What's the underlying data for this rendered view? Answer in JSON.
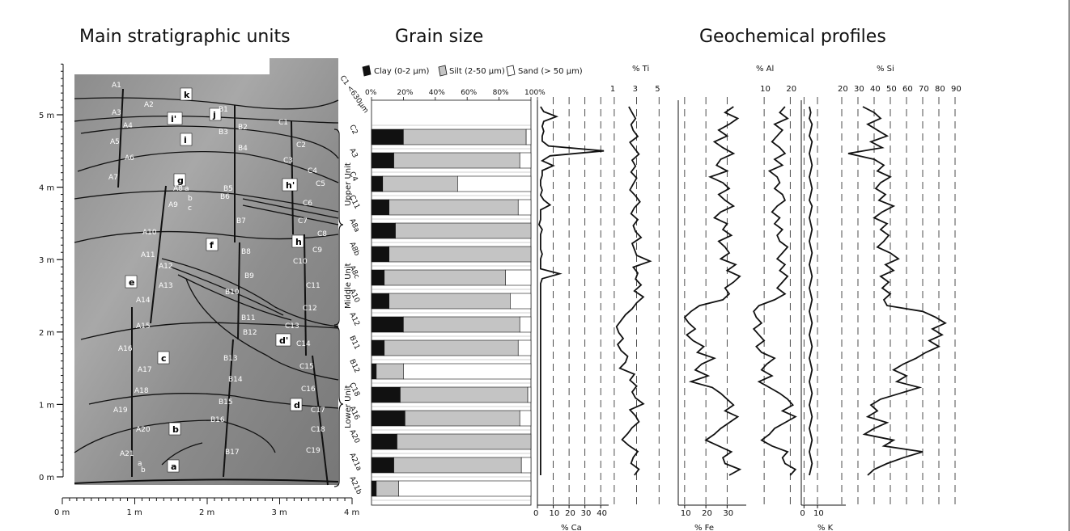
{
  "headings": {
    "strat": "Main stratigraphic units",
    "grain": "Grain size",
    "geo": "Geochemical profiles"
  },
  "strat": {
    "height_ticks": [
      "0 m",
      "1 m",
      "2 m",
      "3 m",
      "4 m",
      "5 m"
    ],
    "distance_ticks": [
      "0 m",
      "1 m",
      "2 m",
      "3 m",
      "4 m"
    ],
    "unit_labels": [
      "k",
      "j",
      "i'",
      "i",
      "g",
      "h'",
      "f",
      "h",
      "e",
      "d'",
      "c",
      "d",
      "b",
      "a"
    ],
    "sample_labels": [
      "A1",
      "A2",
      "A3",
      "A4",
      "A5",
      "A6",
      "A7",
      "A8",
      "a",
      "b",
      "c",
      "A9",
      "A10",
      "A11",
      "A12",
      "A13",
      "A14",
      "A15",
      "A16",
      "A17",
      "A18",
      "A19",
      "A20",
      "A21",
      "a",
      "b",
      "B1",
      "B2",
      "B3",
      "B4",
      "B5",
      "B6",
      "B7",
      "B8",
      "B9",
      "B10",
      "B11",
      "B12",
      "B13",
      "B14",
      "B15",
      "B16",
      "B17",
      "C1",
      "C2",
      "C3",
      "C4",
      "C5",
      "C6",
      "C7",
      "C8",
      "C9",
      "C10",
      "C11",
      "C12",
      "C13",
      "C14",
      "C15",
      "C16",
      "C17",
      "C18",
      "C19"
    ],
    "zones": [
      "Upper Unit",
      "Middle Unit",
      "Lower Unit"
    ]
  },
  "chart_data": [
    {
      "type": "bar",
      "orientation": "horizontal-stacked",
      "legend": [
        "Clay (0-2 µm)",
        "Silt (2-50 µm)",
        "Sand (> 50 µm)"
      ],
      "x_ticks": [
        "0%",
        "20%",
        "40%",
        "60%",
        "80%",
        "100%"
      ],
      "corner_label": "C1 <630µm",
      "categories": [
        "C2",
        "A3",
        "C4",
        "C11",
        "A8a",
        "A8b",
        "A8c",
        "A10",
        "A12",
        "B11",
        "B12",
        "C18",
        "A16",
        "A20",
        "A21a",
        "A21b"
      ],
      "series": [
        {
          "name": "Clay (0-2 µm)",
          "values": [
            20,
            14,
            7,
            11,
            15,
            11,
            8,
            11,
            20,
            8,
            3,
            18,
            21,
            16,
            14,
            3
          ]
        },
        {
          "name": "Silt (2-50 µm)",
          "values": [
            77,
            79,
            47,
            81,
            85,
            89,
            76,
            76,
            73,
            84,
            17,
            80,
            72,
            84,
            80,
            14
          ]
        },
        {
          "name": "Sand (> 50 µm)",
          "values": [
            3,
            7,
            46,
            8,
            0,
            0,
            16,
            13,
            7,
            8,
            80,
            2,
            7,
            0,
            6,
            83
          ]
        }
      ],
      "colors": {
        "clay": "#111111",
        "silt": "#c4c4c4",
        "sand": "#ffffff"
      }
    },
    {
      "type": "line",
      "xlabel": "% Ca",
      "x_ticks": [
        "0",
        "10",
        "20",
        "30",
        "40"
      ],
      "xlim": [
        0,
        45
      ],
      "depth_range_m": [
        0.05,
        5.15
      ],
      "values": [
        2,
        4,
        12,
        4,
        3,
        4,
        3,
        3,
        7,
        42,
        8,
        3,
        10,
        3,
        3,
        2,
        2,
        3,
        2,
        4,
        8,
        2,
        2,
        2,
        1,
        3,
        2,
        2,
        2,
        2,
        3,
        2,
        2,
        2,
        14,
        3,
        2,
        2,
        2,
        2,
        2,
        2,
        2,
        2,
        2,
        2,
        2,
        2,
        2,
        2,
        2,
        2,
        2,
        2,
        2,
        2,
        2,
        2,
        2,
        2,
        2,
        2,
        2,
        2,
        2,
        2,
        2,
        2,
        2,
        2,
        2,
        2,
        2,
        2,
        2,
        2
      ]
    },
    {
      "type": "line",
      "xlabel": "% Ti",
      "x_ticks": [
        "1",
        "3",
        "5"
      ],
      "xlim": [
        0.5,
        6.5
      ],
      "depth_range_m": [
        0.05,
        5.15
      ],
      "values": [
        2.3,
        2.6,
        2.9,
        2.5,
        2.7,
        3.1,
        2.4,
        2.8,
        3.2,
        2.6,
        2.9,
        2.5,
        3.0,
        2.7,
        2.4,
        2.9,
        3.3,
        2.8,
        2.5,
        3.1,
        2.7,
        2.9,
        3.4,
        2.6,
        2.8,
        3.0,
        4.2,
        2.7,
        3.1,
        2.9,
        3.4,
        2.8,
        3.6,
        3.0,
        2.6,
        2.0,
        1.6,
        1.2,
        1.4,
        1.8,
        1.3,
        1.6,
        2.2,
        2.0,
        1.5,
        2.8,
        2.4,
        3.0,
        2.6,
        2.9,
        3.6,
        2.4,
        2.9,
        3.2,
        2.6,
        2.2,
        1.7,
        2.3,
        3.1,
        2.7,
        2.5,
        3.2,
        2.8
      ]
    },
    {
      "type": "line",
      "xlabel": "% Fe",
      "x_ticks": [
        "10",
        "20",
        "30"
      ],
      "xlim": [
        7,
        39
      ],
      "depth_range_m": [
        0.05,
        5.15
      ],
      "values": [
        33,
        29,
        35,
        31,
        26,
        30,
        24,
        28,
        33,
        27,
        25,
        30,
        22,
        28,
        31,
        26,
        29,
        33,
        27,
        24,
        30,
        28,
        32,
        26,
        29,
        31,
        27,
        34,
        30,
        36,
        33,
        29,
        31,
        28,
        17,
        13,
        10,
        12,
        15,
        11,
        14,
        19,
        16,
        24,
        18,
        15,
        21,
        13,
        23,
        27,
        30,
        33,
        29,
        35,
        31,
        27,
        24,
        20,
        26,
        32,
        28,
        29,
        36,
        31
      ]
    },
    {
      "type": "line",
      "xlabel": "% Al",
      "x_ticks": [
        "10",
        "20"
      ],
      "xlim": [
        5,
        23
      ],
      "depth_range_m": [
        0.05,
        5.15
      ],
      "values": [
        18,
        16,
        19,
        14,
        17,
        15,
        13,
        16,
        18,
        14,
        17,
        12,
        15,
        16,
        14,
        17,
        18,
        15,
        13,
        16,
        14,
        17,
        15,
        16,
        19,
        17,
        15,
        18,
        16,
        19,
        17,
        15,
        18,
        14,
        8,
        6,
        7,
        9,
        6,
        8,
        10,
        7,
        9,
        14,
        11,
        9,
        13,
        8,
        12,
        16,
        19,
        21,
        17,
        22,
        18,
        14,
        12,
        9,
        13,
        19,
        17,
        18,
        22,
        20
      ]
    },
    {
      "type": "line",
      "xlabel": "% K",
      "x_ticks": [
        "0",
        "10"
      ],
      "xlim": [
        -2,
        31
      ],
      "depth_range_m": [
        0.05,
        5.15
      ],
      "values": [
        4,
        5,
        4,
        6,
        5,
        4,
        6,
        5,
        4,
        5,
        6,
        5,
        4,
        5,
        6,
        5,
        4,
        6,
        5,
        4,
        5,
        6,
        5,
        4,
        5,
        6,
        5,
        4,
        5,
        6,
        5,
        4,
        5,
        6,
        5,
        4,
        5,
        6,
        5,
        4,
        5,
        6,
        5,
        4,
        5,
        6,
        5,
        4,
        5,
        6,
        5,
        4,
        5,
        6,
        5,
        4,
        5,
        6,
        5,
        4,
        5,
        6,
        5,
        4
      ]
    },
    {
      "type": "line",
      "xlabel": "% Si",
      "x_ticks": [
        "20",
        "30",
        "40",
        "50",
        "60",
        "70",
        "80",
        "90"
      ],
      "xlim": [
        20,
        90
      ],
      "depth_range_m": [
        0.05,
        5.15
      ],
      "values": [
        33,
        40,
        44,
        36,
        42,
        48,
        38,
        45,
        24,
        40,
        46,
        42,
        50,
        44,
        41,
        47,
        43,
        52,
        45,
        40,
        48,
        44,
        49,
        46,
        42,
        50,
        55,
        47,
        52,
        44,
        49,
        45,
        50,
        46,
        48,
        70,
        78,
        84,
        76,
        82,
        74,
        80,
        72,
        66,
        58,
        52,
        60,
        54,
        68,
        56,
        44,
        38,
        42,
        36,
        48,
        40,
        34,
        52,
        46,
        70,
        58,
        48,
        40,
        36
      ]
    }
  ]
}
